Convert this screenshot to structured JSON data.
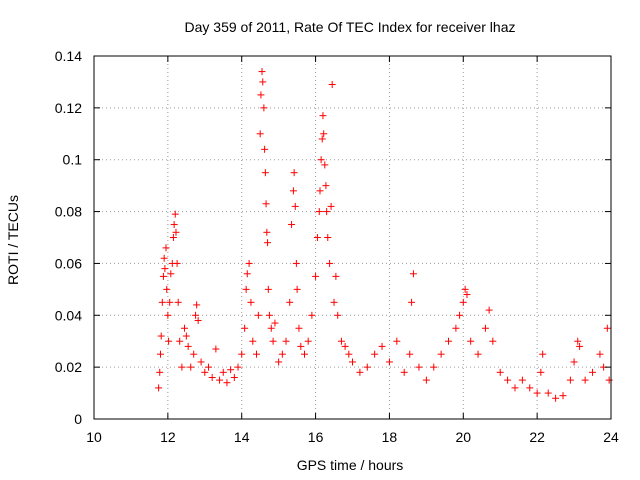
{
  "chart_data": {
    "type": "scatter",
    "title": "Day 359 of 2011, Rate Of TEC Index for receiver lhaz",
    "xlabel": "GPS time / hours",
    "ylabel": "ROTI / TECUs",
    "xlim": [
      10,
      24
    ],
    "ylim": [
      0,
      0.14
    ],
    "xticks": [
      10,
      12,
      14,
      16,
      18,
      20,
      22,
      24
    ],
    "xtick_labels": [
      "10",
      "12",
      "14",
      "16",
      "18",
      "20",
      "22",
      "24"
    ],
    "yticks": [
      0,
      0.02,
      0.04,
      0.06,
      0.08,
      0.1,
      0.12,
      0.14
    ],
    "ytick_labels": [
      "0",
      "0.02",
      "0.04",
      "0.06",
      "0.08",
      "0.1",
      "0.12",
      "0.14"
    ],
    "grid": true,
    "marker": "+",
    "color": "#ff0000",
    "series": [
      {
        "name": "ROTI",
        "points": [
          [
            11.75,
            0.012
          ],
          [
            11.78,
            0.018
          ],
          [
            11.8,
            0.025
          ],
          [
            11.82,
            0.032
          ],
          [
            11.85,
            0.045
          ],
          [
            11.88,
            0.055
          ],
          [
            11.9,
            0.062
          ],
          [
            11.92,
            0.058
          ],
          [
            11.95,
            0.066
          ],
          [
            11.97,
            0.05
          ],
          [
            12.0,
            0.04
          ],
          [
            12.02,
            0.03
          ],
          [
            12.05,
            0.045
          ],
          [
            12.08,
            0.056
          ],
          [
            12.12,
            0.06
          ],
          [
            12.15,
            0.07
          ],
          [
            12.17,
            0.075
          ],
          [
            12.2,
            0.079
          ],
          [
            12.22,
            0.072
          ],
          [
            12.25,
            0.06
          ],
          [
            12.28,
            0.045
          ],
          [
            12.32,
            0.03
          ],
          [
            12.38,
            0.02
          ],
          [
            12.45,
            0.035
          ],
          [
            12.5,
            0.032
          ],
          [
            12.55,
            0.028
          ],
          [
            12.62,
            0.02
          ],
          [
            12.7,
            0.025
          ],
          [
            12.75,
            0.04
          ],
          [
            12.78,
            0.044
          ],
          [
            12.82,
            0.038
          ],
          [
            12.9,
            0.022
          ],
          [
            13.0,
            0.018
          ],
          [
            13.1,
            0.02
          ],
          [
            13.2,
            0.016
          ],
          [
            13.3,
            0.027
          ],
          [
            13.4,
            0.015
          ],
          [
            13.5,
            0.018
          ],
          [
            13.6,
            0.014
          ],
          [
            13.7,
            0.019
          ],
          [
            13.8,
            0.016
          ],
          [
            13.9,
            0.02
          ],
          [
            14.0,
            0.025
          ],
          [
            14.08,
            0.035
          ],
          [
            14.12,
            0.05
          ],
          [
            14.15,
            0.056
          ],
          [
            14.2,
            0.06
          ],
          [
            14.25,
            0.045
          ],
          [
            14.3,
            0.03
          ],
          [
            14.4,
            0.025
          ],
          [
            14.45,
            0.04
          ],
          [
            14.5,
            0.11
          ],
          [
            14.52,
            0.125
          ],
          [
            14.55,
            0.134
          ],
          [
            14.57,
            0.13
          ],
          [
            14.6,
            0.12
          ],
          [
            14.62,
            0.104
          ],
          [
            14.64,
            0.095
          ],
          [
            14.66,
            0.083
          ],
          [
            14.68,
            0.072
          ],
          [
            14.7,
            0.068
          ],
          [
            14.72,
            0.05
          ],
          [
            14.75,
            0.04
          ],
          [
            14.8,
            0.035
          ],
          [
            14.85,
            0.03
          ],
          [
            14.9,
            0.037
          ],
          [
            15.0,
            0.022
          ],
          [
            15.1,
            0.025
          ],
          [
            15.2,
            0.03
          ],
          [
            15.3,
            0.045
          ],
          [
            15.35,
            0.075
          ],
          [
            15.4,
            0.088
          ],
          [
            15.42,
            0.095
          ],
          [
            15.45,
            0.082
          ],
          [
            15.48,
            0.06
          ],
          [
            15.5,
            0.05
          ],
          [
            15.55,
            0.035
          ],
          [
            15.6,
            0.028
          ],
          [
            15.7,
            0.025
          ],
          [
            15.8,
            0.03
          ],
          [
            15.9,
            0.04
          ],
          [
            16.0,
            0.055
          ],
          [
            16.05,
            0.07
          ],
          [
            16.1,
            0.08
          ],
          [
            16.12,
            0.088
          ],
          [
            16.15,
            0.1
          ],
          [
            16.18,
            0.108
          ],
          [
            16.2,
            0.117
          ],
          [
            16.22,
            0.11
          ],
          [
            16.25,
            0.098
          ],
          [
            16.28,
            0.09
          ],
          [
            16.3,
            0.08
          ],
          [
            16.33,
            0.07
          ],
          [
            16.38,
            0.06
          ],
          [
            16.42,
            0.082
          ],
          [
            16.45,
            0.129
          ],
          [
            16.5,
            0.045
          ],
          [
            16.55,
            0.055
          ],
          [
            16.6,
            0.04
          ],
          [
            16.7,
            0.03
          ],
          [
            16.8,
            0.028
          ],
          [
            16.9,
            0.025
          ],
          [
            17.0,
            0.022
          ],
          [
            17.2,
            0.018
          ],
          [
            17.4,
            0.02
          ],
          [
            17.6,
            0.025
          ],
          [
            17.8,
            0.028
          ],
          [
            18.0,
            0.022
          ],
          [
            18.2,
            0.03
          ],
          [
            18.4,
            0.018
          ],
          [
            18.55,
            0.025
          ],
          [
            18.6,
            0.045
          ],
          [
            18.65,
            0.056
          ],
          [
            18.8,
            0.02
          ],
          [
            19.0,
            0.015
          ],
          [
            19.2,
            0.02
          ],
          [
            19.4,
            0.025
          ],
          [
            19.6,
            0.03
          ],
          [
            19.8,
            0.035
          ],
          [
            19.9,
            0.04
          ],
          [
            20.0,
            0.045
          ],
          [
            20.05,
            0.05
          ],
          [
            20.1,
            0.048
          ],
          [
            20.2,
            0.03
          ],
          [
            20.4,
            0.025
          ],
          [
            20.6,
            0.035
          ],
          [
            20.7,
            0.042
          ],
          [
            20.8,
            0.03
          ],
          [
            21.0,
            0.018
          ],
          [
            21.2,
            0.015
          ],
          [
            21.4,
            0.012
          ],
          [
            21.6,
            0.015
          ],
          [
            21.8,
            0.012
          ],
          [
            22.0,
            0.01
          ],
          [
            22.1,
            0.018
          ],
          [
            22.15,
            0.025
          ],
          [
            22.3,
            0.01
          ],
          [
            22.5,
            0.008
          ],
          [
            22.7,
            0.009
          ],
          [
            22.9,
            0.015
          ],
          [
            23.0,
            0.022
          ],
          [
            23.1,
            0.03
          ],
          [
            23.15,
            0.028
          ],
          [
            23.3,
            0.015
          ],
          [
            23.5,
            0.018
          ],
          [
            23.7,
            0.025
          ],
          [
            23.8,
            0.02
          ],
          [
            23.9,
            0.035
          ],
          [
            23.95,
            0.015
          ]
        ]
      }
    ]
  }
}
